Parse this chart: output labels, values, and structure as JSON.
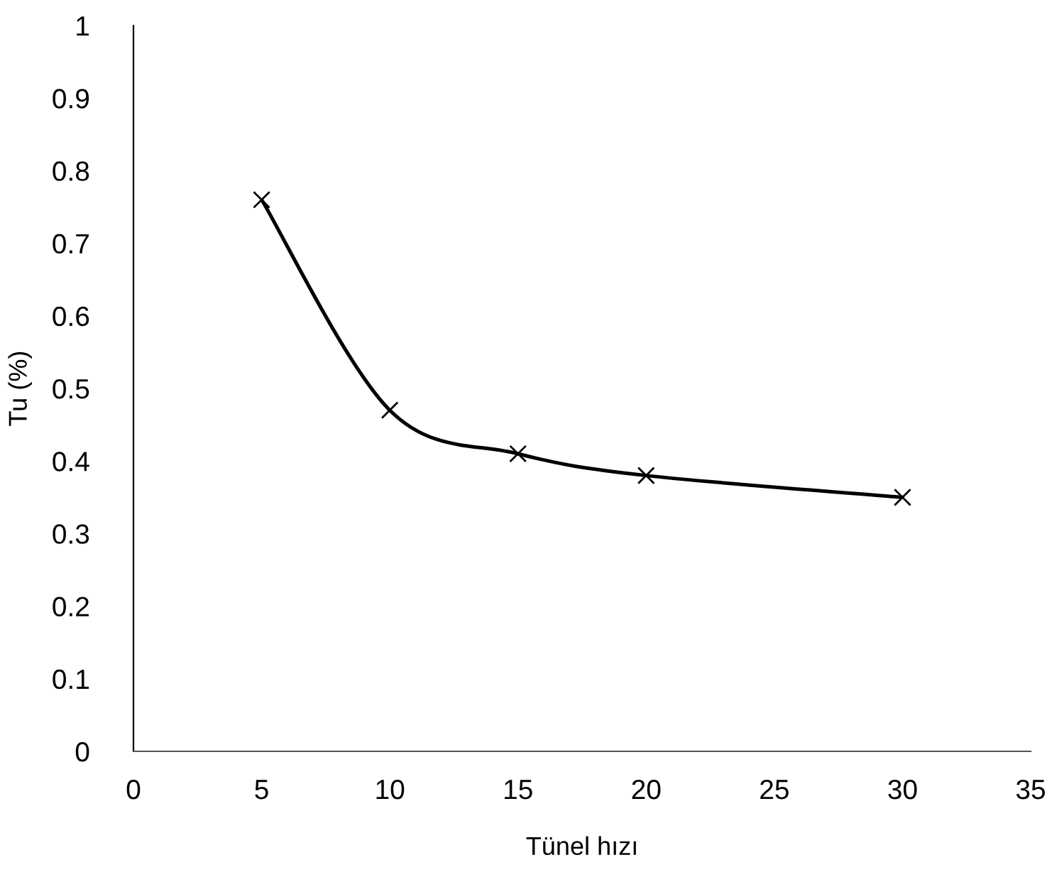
{
  "chart_data": {
    "type": "line",
    "xlabel": "Tünel hızı",
    "ylabel": "Tu (%)",
    "x": [
      5,
      10,
      15,
      20,
      30
    ],
    "series": [
      {
        "color": "#000000",
        "values": [
          0.76,
          0.47,
          0.41,
          0.38,
          0.35
        ]
      }
    ],
    "xlim": [
      0,
      35
    ],
    "xticks": [
      0,
      5,
      10,
      15,
      20,
      25,
      30,
      35
    ],
    "ylim": [
      0,
      1
    ],
    "yticks": [
      0,
      0.1,
      0.2,
      0.3,
      0.4,
      0.5,
      0.6,
      0.7,
      0.8,
      0.9,
      1
    ],
    "marker": "cross",
    "line_style": "solid",
    "grid": false,
    "legend": false
  }
}
